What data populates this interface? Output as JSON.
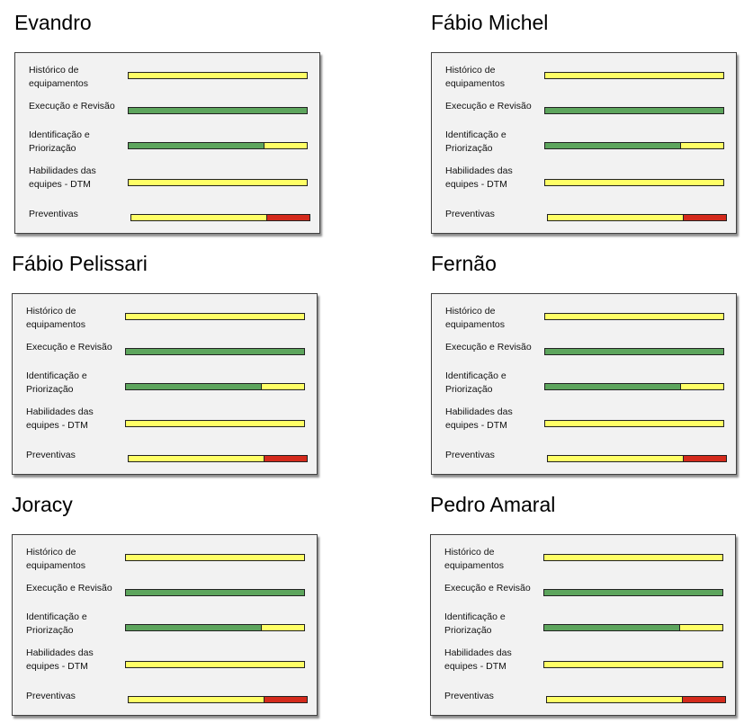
{
  "colors": {
    "yellow": "#ffff66",
    "green": "#5da55d",
    "red": "#d42a1c"
  },
  "people": [
    {
      "name": "Evandro",
      "rows": [
        {
          "label": "Histórico de\nequipamentos",
          "segments": [
            {
              "status": "yellow",
              "fraction": 1
            }
          ]
        },
        {
          "label": "Execução e Revisão",
          "segments": [
            {
              "status": "green",
              "fraction": 1
            }
          ]
        },
        {
          "label": "Identificação e\nPriorização",
          "segments": [
            {
              "status": "green",
              "fraction": 0.76
            },
            {
              "status": "yellow",
              "fraction": 0.24
            }
          ]
        },
        {
          "label": "Habilidades das\nequipes - DTM",
          "segments": [
            {
              "status": "yellow",
              "fraction": 1
            }
          ]
        },
        {
          "label": "Preventivas",
          "segments": [
            {
              "status": "yellow",
              "fraction": 0.76
            },
            {
              "status": "red",
              "fraction": 0.24
            }
          ]
        }
      ]
    },
    {
      "name": "Fábio Michel",
      "rows": [
        {
          "label": "Histórico de\nequipamentos",
          "segments": [
            {
              "status": "yellow",
              "fraction": 1
            }
          ]
        },
        {
          "label": "Execução e Revisão",
          "segments": [
            {
              "status": "green",
              "fraction": 1
            }
          ]
        },
        {
          "label": "Identificação e\nPriorização",
          "segments": [
            {
              "status": "green",
              "fraction": 0.76
            },
            {
              "status": "yellow",
              "fraction": 0.24
            }
          ]
        },
        {
          "label": "Habilidades das\nequipes - DTM",
          "segments": [
            {
              "status": "yellow",
              "fraction": 1
            }
          ]
        },
        {
          "label": "Preventivas",
          "segments": [
            {
              "status": "yellow",
              "fraction": 0.76
            },
            {
              "status": "red",
              "fraction": 0.24
            }
          ]
        }
      ]
    },
    {
      "name": "Fábio Pelissari",
      "rows": [
        {
          "label": "Histórico de\nequipamentos",
          "segments": [
            {
              "status": "yellow",
              "fraction": 1
            }
          ]
        },
        {
          "label": "Execução e Revisão",
          "segments": [
            {
              "status": "green",
              "fraction": 1
            }
          ]
        },
        {
          "label": "Identificação e\nPriorização",
          "segments": [
            {
              "status": "green",
              "fraction": 0.76
            },
            {
              "status": "yellow",
              "fraction": 0.24
            }
          ]
        },
        {
          "label": "Habilidades das\nequipes - DTM",
          "segments": [
            {
              "status": "yellow",
              "fraction": 1
            }
          ]
        },
        {
          "label": "Preventivas",
          "segments": [
            {
              "status": "yellow",
              "fraction": 0.76
            },
            {
              "status": "red",
              "fraction": 0.24
            }
          ]
        }
      ]
    },
    {
      "name": "Fernão",
      "rows": [
        {
          "label": "Histórico de\nequipamentos",
          "segments": [
            {
              "status": "yellow",
              "fraction": 1
            }
          ]
        },
        {
          "label": "Execução e Revisão",
          "segments": [
            {
              "status": "green",
              "fraction": 1
            }
          ]
        },
        {
          "label": "Identificação e\nPriorização",
          "segments": [
            {
              "status": "green",
              "fraction": 0.76
            },
            {
              "status": "yellow",
              "fraction": 0.24
            }
          ]
        },
        {
          "label": "Habilidades das\nequipes - DTM",
          "segments": [
            {
              "status": "yellow",
              "fraction": 1
            }
          ]
        },
        {
          "label": "Preventivas",
          "segments": [
            {
              "status": "yellow",
              "fraction": 0.76
            },
            {
              "status": "red",
              "fraction": 0.24
            }
          ]
        }
      ]
    },
    {
      "name": "Joracy",
      "rows": [
        {
          "label": "Histórico de\nequipamentos",
          "segments": [
            {
              "status": "yellow",
              "fraction": 1
            }
          ]
        },
        {
          "label": "Execução e Revisão",
          "segments": [
            {
              "status": "green",
              "fraction": 1
            }
          ]
        },
        {
          "label": "Identificação e\nPriorização",
          "segments": [
            {
              "status": "green",
              "fraction": 0.76
            },
            {
              "status": "yellow",
              "fraction": 0.24
            }
          ]
        },
        {
          "label": "Habilidades das\nequipes - DTM",
          "segments": [
            {
              "status": "yellow",
              "fraction": 1
            }
          ]
        },
        {
          "label": "Preventivas",
          "segments": [
            {
              "status": "yellow",
              "fraction": 0.76
            },
            {
              "status": "red",
              "fraction": 0.24
            }
          ]
        }
      ]
    },
    {
      "name": "Pedro Amaral",
      "rows": [
        {
          "label": "Histórico de\nequipamentos",
          "segments": [
            {
              "status": "yellow",
              "fraction": 1
            }
          ]
        },
        {
          "label": "Execução e Revisão",
          "segments": [
            {
              "status": "green",
              "fraction": 1
            }
          ]
        },
        {
          "label": "Identificação e\nPriorização",
          "segments": [
            {
              "status": "green",
              "fraction": 0.76
            },
            {
              "status": "yellow",
              "fraction": 0.24
            }
          ]
        },
        {
          "label": "Habilidades das\nequipes - DTM",
          "segments": [
            {
              "status": "yellow",
              "fraction": 1
            }
          ]
        },
        {
          "label": "Preventivas",
          "segments": [
            {
              "status": "yellow",
              "fraction": 0.76
            },
            {
              "status": "red",
              "fraction": 0.24
            }
          ]
        }
      ]
    }
  ]
}
